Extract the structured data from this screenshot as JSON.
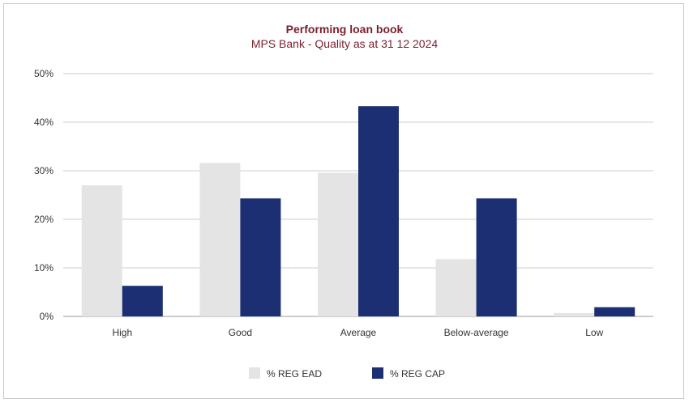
{
  "chart_data": {
    "type": "bar",
    "title": "Performing loan book",
    "subtitle": "MPS Bank - Quality as at 31 12 2024",
    "categories": [
      "High",
      "Good",
      "Average",
      "Below-average",
      "Low"
    ],
    "series": [
      {
        "name": "% REG EAD",
        "values": [
          27.0,
          31.6,
          29.6,
          11.8,
          0.7
        ],
        "color": "#e4e4e4"
      },
      {
        "name": "% REG CAP",
        "values": [
          6.3,
          24.3,
          43.3,
          24.3,
          1.9
        ],
        "color": "#1c2f73"
      }
    ],
    "ylim": [
      0,
      50
    ],
    "yticks": [
      0,
      10,
      20,
      30,
      40,
      50
    ],
    "ytick_labels": [
      "0%",
      "10%",
      "20%",
      "30%",
      "40%",
      "50%"
    ],
    "xlabel": "",
    "ylabel": "",
    "grid": true,
    "legend_position": "bottom"
  },
  "colors": {
    "title": "#7a1f2b",
    "grid": "#cccccc",
    "axis": "#999999"
  }
}
